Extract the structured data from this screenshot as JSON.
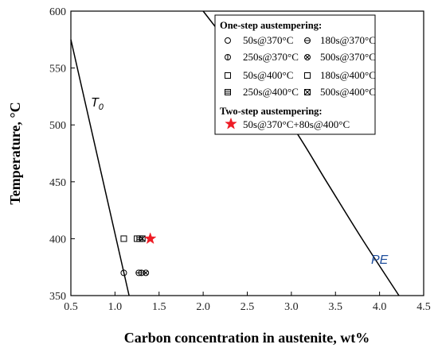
{
  "chart_data": {
    "type": "scatter",
    "xlabel": "Carbon concentration in austenite, wt%",
    "ylabel": "Temperature, °C",
    "xlim": [
      0.5,
      4.5
    ],
    "ylim": [
      350,
      600
    ],
    "x_ticks": [
      "0.5",
      "1.0",
      "1.5",
      "2.0",
      "2.5",
      "3.0",
      "3.5",
      "4.0",
      "4.5"
    ],
    "y_ticks": [
      "350",
      "400",
      "450",
      "500",
      "550",
      "600"
    ],
    "grid": false,
    "legend": {
      "placement": "top-right",
      "group1_title": "One-step  austempering:",
      "group2_title": "Two-step  austempering:"
    },
    "curves": [
      {
        "name": "T₀",
        "label_main": "T",
        "label_sub": "0",
        "color": "#000000",
        "points": [
          [
            0.5,
            575
          ],
          [
            1.16,
            350
          ]
        ]
      },
      {
        "name": "PE",
        "label_main": "PE",
        "label_sub": "",
        "color": "#1f4e9c",
        "points": [
          [
            2.0,
            600
          ],
          [
            2.5,
            550
          ],
          [
            3.0,
            500
          ],
          [
            3.4,
            450
          ],
          [
            3.8,
            400
          ],
          [
            4.22,
            350
          ]
        ]
      }
    ],
    "series": [
      {
        "name": "50s@370°C",
        "marker": "circle",
        "color": "#000000",
        "points": [
          [
            1.1,
            370
          ]
        ]
      },
      {
        "name": "180s@370°C",
        "marker": "circle-hline",
        "color": "#000000",
        "points": [
          [
            1.27,
            370
          ]
        ]
      },
      {
        "name": "250s@370°C",
        "marker": "circle-vline",
        "color": "#000000",
        "points": [
          [
            1.3,
            370
          ]
        ]
      },
      {
        "name": "500s@370°C",
        "marker": "circle-x",
        "color": "#000000",
        "points": [
          [
            1.35,
            370
          ]
        ]
      },
      {
        "name": "50s@400°C",
        "marker": "square",
        "color": "#000000",
        "points": [
          [
            1.1,
            400
          ]
        ]
      },
      {
        "name": "180s@400°C",
        "marker": "square",
        "color": "#000000",
        "points": [
          [
            1.25,
            400
          ]
        ]
      },
      {
        "name": "250s@400°C",
        "marker": "square-grid",
        "color": "#000000",
        "points": [
          [
            1.28,
            400
          ]
        ]
      },
      {
        "name": "500s@400°C",
        "marker": "square-x",
        "color": "#000000",
        "points": [
          [
            1.31,
            400
          ]
        ]
      },
      {
        "name": "50s@370°C+80s@400°C",
        "marker": "star",
        "color": "#ee1c25",
        "points": [
          [
            1.4,
            400
          ]
        ]
      }
    ]
  }
}
